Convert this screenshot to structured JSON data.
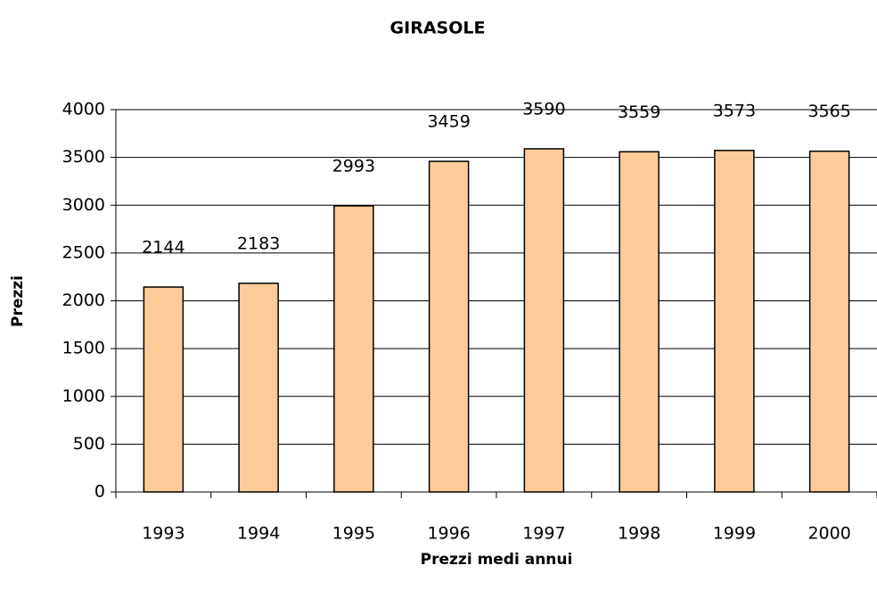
{
  "chart_data": {
    "type": "bar",
    "title": "GIRASOLE",
    "x_label": "Prezzi medi annui",
    "y_label": "Prezzi",
    "categories": [
      "1993",
      "1994",
      "1995",
      "1996",
      "1997",
      "1998",
      "1999",
      "2000"
    ],
    "values": [
      2144,
      2183,
      2993,
      3459,
      3590,
      3559,
      3573,
      3565
    ],
    "color": "#ffcc99",
    "ylim": [
      0,
      4000
    ],
    "yticks": [
      0,
      500,
      1000,
      1500,
      2000,
      2500,
      3000,
      3500,
      4000
    ],
    "grid": true
  }
}
